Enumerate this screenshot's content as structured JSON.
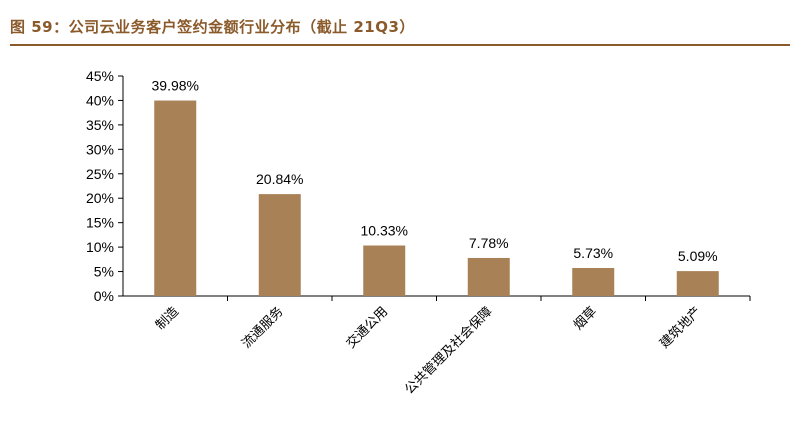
{
  "title": "图 59：公司云业务客户签约金额行业分布（截止 21Q3）",
  "colors": {
    "bar": "#a98156",
    "accent": "#8b5a2b",
    "axis": "#000000"
  },
  "chart_data": {
    "type": "bar",
    "categories": [
      "制造",
      "流通服务",
      "交通公用",
      "公共管理及社会保障",
      "烟草",
      "建筑地产"
    ],
    "values": [
      39.98,
      20.84,
      10.33,
      7.78,
      5.73,
      5.09
    ],
    "data_labels": [
      "39.98%",
      "20.84%",
      "10.33%",
      "7.78%",
      "5.73%",
      "5.09%"
    ],
    "yticks": [
      "0%",
      "5%",
      "10%",
      "15%",
      "20%",
      "25%",
      "30%",
      "35%",
      "40%",
      "45%"
    ],
    "ylim": [
      0,
      45
    ],
    "grid": false,
    "legend": "none",
    "xlabel": "",
    "ylabel": ""
  }
}
